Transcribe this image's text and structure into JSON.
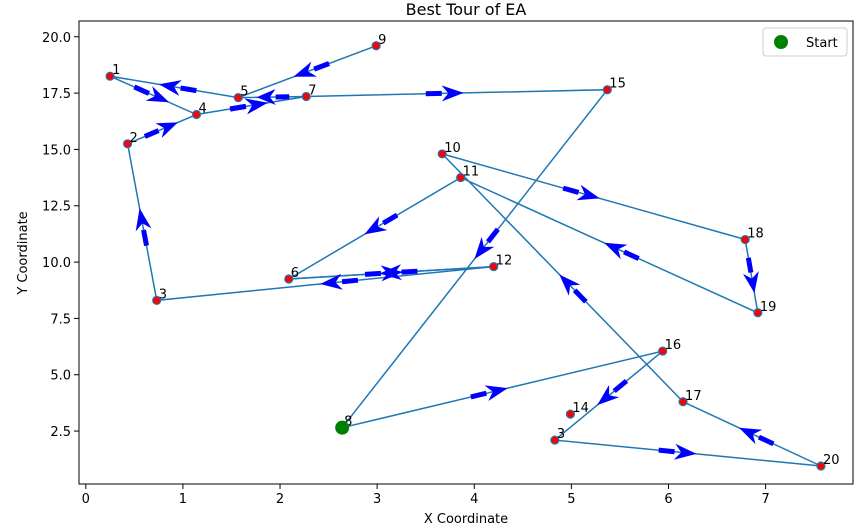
{
  "chart_data": {
    "type": "line",
    "title": "Best Tour of EA",
    "xlabel": "X Coordinate",
    "ylabel": "Y Coordinate",
    "xlim": [
      -0.07,
      7.9
    ],
    "ylim": [
      0.15,
      20.7
    ],
    "xticks": [
      0,
      1,
      2,
      3,
      4,
      5,
      6,
      7
    ],
    "xtick_labels": [
      "0",
      "1",
      "2",
      "3",
      "4",
      "5",
      "6",
      "7"
    ],
    "yticks": [
      2.5,
      5.0,
      7.5,
      10.0,
      12.5,
      15.0,
      17.5,
      20.0
    ],
    "ytick_labels": [
      "2.5",
      "5.0",
      "7.5",
      "10.0",
      "12.5",
      "15.0",
      "17.5",
      "20.0"
    ],
    "grid": false,
    "legend": {
      "placement": "top-right",
      "entries": [
        {
          "label": "Start",
          "color": "#008000"
        }
      ]
    },
    "colors": {
      "tour_line": "#1f77b4",
      "city_point": "#ff0000",
      "city_edge": "#1f77b4",
      "arrow": "#0000ff",
      "start": "#008000"
    },
    "cities": [
      {
        "label": "1",
        "x": 0.25,
        "y": 18.25
      },
      {
        "label": "2",
        "x": 0.43,
        "y": 15.25
      },
      {
        "label": "3",
        "x": 0.73,
        "y": 8.3
      },
      {
        "label": "3",
        "x": 4.83,
        "y": 2.1
      },
      {
        "label": "4",
        "x": 1.14,
        "y": 16.55
      },
      {
        "label": "5",
        "x": 1.57,
        "y": 17.3
      },
      {
        "label": "6",
        "x": 2.09,
        "y": 9.25
      },
      {
        "label": "7",
        "x": 2.27,
        "y": 17.35
      },
      {
        "label": "8",
        "x": 2.64,
        "y": 2.65
      },
      {
        "label": "9",
        "x": 2.99,
        "y": 19.6
      },
      {
        "label": "10",
        "x": 3.67,
        "y": 14.8
      },
      {
        "label": "11",
        "x": 3.86,
        "y": 13.75
      },
      {
        "label": "12",
        "x": 4.2,
        "y": 9.8
      },
      {
        "label": "14",
        "x": 4.99,
        "y": 3.25
      },
      {
        "label": "15",
        "x": 5.37,
        "y": 17.65
      },
      {
        "label": "16",
        "x": 5.94,
        "y": 6.05
      },
      {
        "label": "17",
        "x": 6.15,
        "y": 3.8
      },
      {
        "label": "18",
        "x": 6.79,
        "y": 11.0
      },
      {
        "label": "19",
        "x": 6.92,
        "y": 7.75
      },
      {
        "label": "20",
        "x": 7.57,
        "y": 0.95
      }
    ],
    "tour": [
      [
        2.64,
        2.65
      ],
      [
        5.94,
        6.05
      ],
      [
        4.83,
        2.1
      ],
      [
        7.57,
        0.95
      ],
      [
        6.15,
        3.8
      ],
      [
        3.67,
        14.8
      ],
      [
        6.79,
        11.0
      ],
      [
        6.92,
        7.75
      ],
      [
        3.86,
        13.75
      ],
      [
        2.09,
        9.25
      ],
      [
        4.2,
        9.8
      ],
      [
        0.73,
        8.3
      ],
      [
        0.43,
        15.25
      ],
      [
        1.14,
        16.55
      ],
      [
        2.27,
        17.35
      ],
      [
        1.57,
        17.3
      ],
      [
        0.25,
        18.25
      ],
      [
        1.14,
        16.55
      ],
      [
        2.27,
        17.35
      ],
      [
        5.37,
        17.65
      ],
      [
        2.64,
        2.65
      ]
    ],
    "start": {
      "label": "8",
      "x": 2.64,
      "y": 2.65
    },
    "extra_segments": [
      {
        "from": [
          2.99,
          19.6
        ],
        "to": [
          1.57,
          17.3
        ]
      },
      {
        "from": [
          4.2,
          9.8
        ],
        "to": [
          2.09,
          9.25
        ]
      }
    ]
  }
}
